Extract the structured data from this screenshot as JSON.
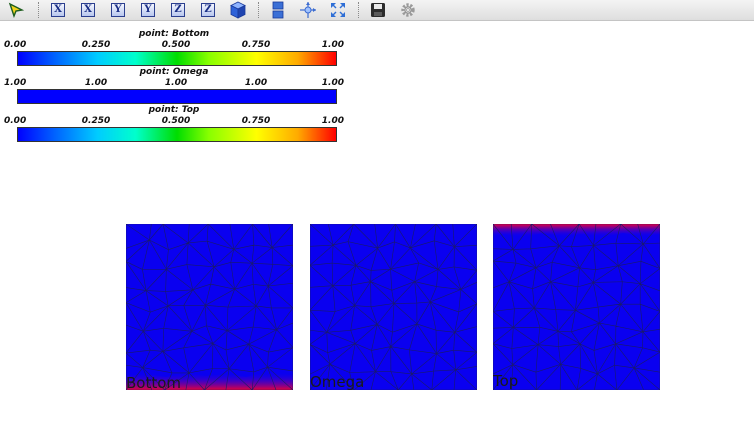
{
  "toolbar": {
    "buttons": [
      {
        "name": "select-arrow-icon",
        "icon": "arrow-pointer"
      },
      {
        "name": "view-x-positive-icon",
        "icon": "axis-box",
        "label": "X"
      },
      {
        "name": "view-x-negative-icon",
        "icon": "axis-box",
        "label": "X"
      },
      {
        "name": "view-y-positive-icon",
        "icon": "axis-box",
        "label": "Y"
      },
      {
        "name": "view-y-negative-icon",
        "icon": "axis-box",
        "label": "Y"
      },
      {
        "name": "view-z-positive-icon",
        "icon": "axis-box",
        "label": "Z"
      },
      {
        "name": "view-z-negative-icon",
        "icon": "axis-box",
        "label": "Z"
      },
      {
        "name": "isometric-cube-icon",
        "icon": "cube"
      },
      {
        "name": "layout-icon",
        "icon": "stack"
      },
      {
        "name": "center-axes-icon",
        "icon": "crosshair"
      },
      {
        "name": "fit-view-icon",
        "icon": "expand"
      },
      {
        "name": "save-icon",
        "icon": "floppy"
      },
      {
        "name": "settings-gear-icon",
        "icon": "gear"
      }
    ]
  },
  "scalar_bars": [
    {
      "title": "point: Bottom",
      "ticks": [
        "0.00",
        "0.250",
        "0.500",
        "0.750",
        "1.00"
      ],
      "colormap": "rainbow"
    },
    {
      "title": "point: Omega",
      "ticks": [
        "1.00",
        "1.00",
        "1.00",
        "1.00",
        "1.00"
      ],
      "colormap": "solid-blue"
    },
    {
      "title": "point: Top",
      "ticks": [
        "0.00",
        "0.250",
        "0.500",
        "0.750",
        "1.00"
      ],
      "colormap": "rainbow"
    }
  ],
  "views": [
    {
      "label": "Bottom",
      "highlight": "bottom"
    },
    {
      "label": "Omega",
      "highlight": "none"
    },
    {
      "label": "Top",
      "highlight": "top"
    }
  ],
  "colors": {
    "field_blue": "#0a00f0",
    "edge_red": "#e8003a",
    "mesh_line": "#1a1a6a"
  }
}
